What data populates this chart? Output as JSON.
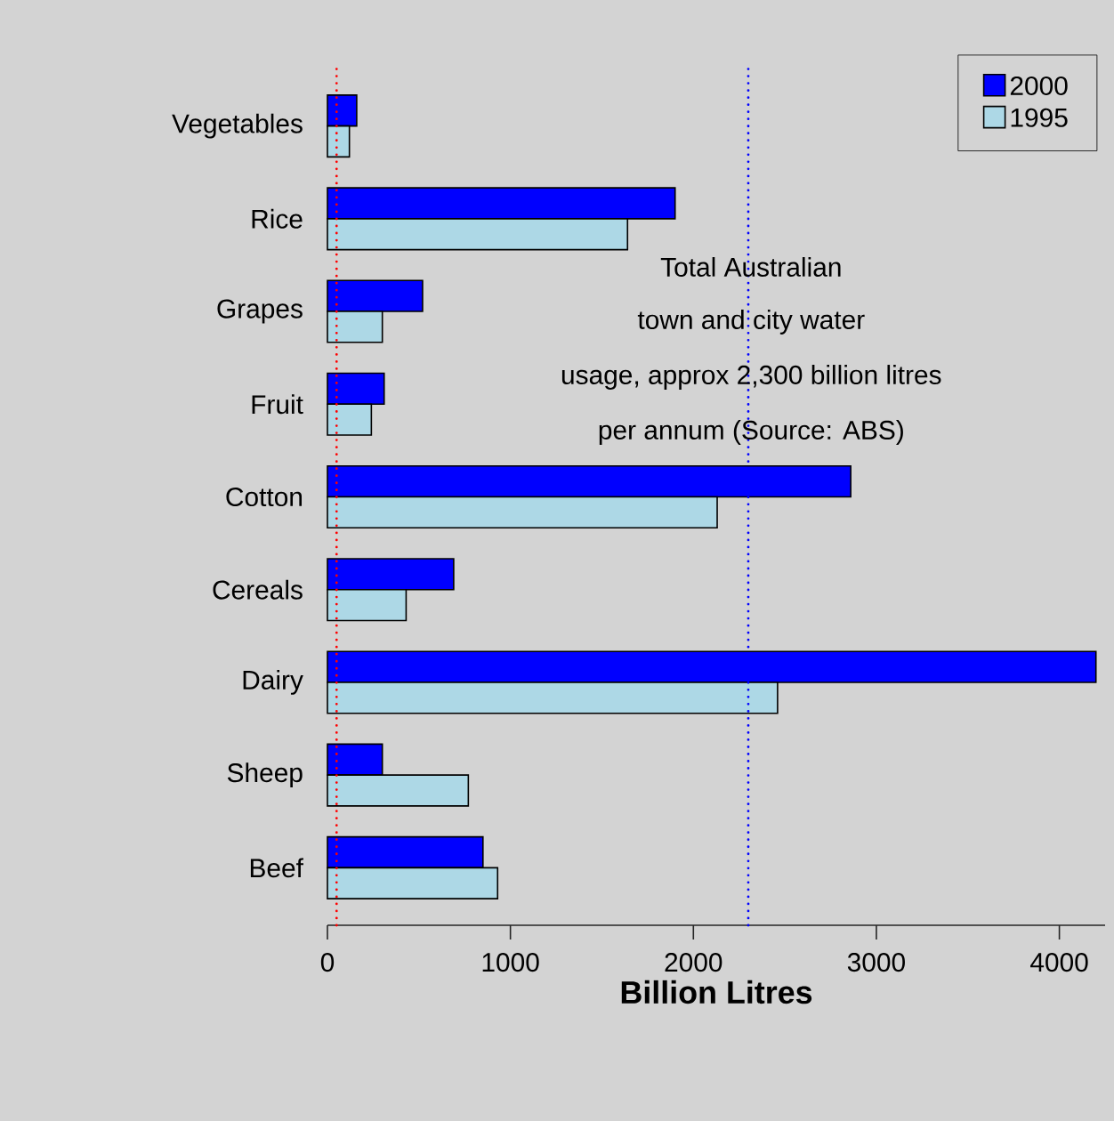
{
  "chart_data": {
    "type": "bar",
    "orientation": "horizontal",
    "xlabel": "Billion Litres",
    "categories": [
      "Vegetables",
      "Rice",
      "Grapes",
      "Fruit",
      "Cotton",
      "Cereals",
      "Dairy",
      "Sheep",
      "Beef"
    ],
    "series": [
      {
        "name": "2000",
        "color": "#0000ff",
        "values": [
          160,
          1900,
          520,
          310,
          2860,
          690,
          4200,
          300,
          850
        ]
      },
      {
        "name": "1995",
        "color": "#add8e6",
        "values": [
          120,
          1640,
          300,
          240,
          2130,
          430,
          2460,
          770,
          930
        ]
      }
    ],
    "xlim": [
      0,
      4250
    ],
    "xticks": [
      0,
      1000,
      2000,
      3000,
      4000
    ],
    "ref_lines": [
      {
        "axis": "x",
        "value": 50,
        "color": "#ff0000",
        "line_style": "dotted"
      },
      {
        "axis": "x",
        "value": 2300,
        "color": "#0000ff",
        "line_style": "dotted"
      }
    ],
    "annotations": [
      "Total Australian",
      "town and city water",
      "usage, approx 2,300 billion litres",
      "per annum (Source: ABS)"
    ],
    "legend": "top right"
  }
}
